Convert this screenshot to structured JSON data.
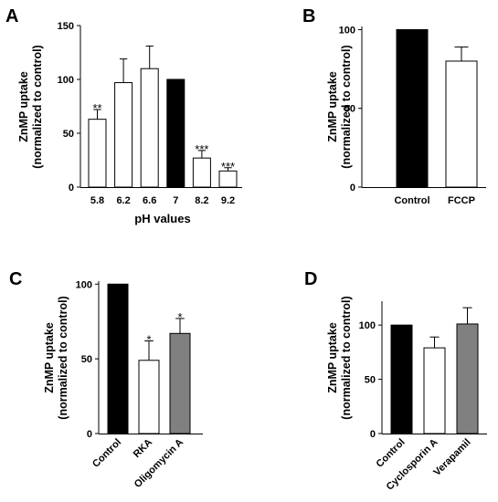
{
  "chart_data": [
    {
      "panel_label": "A",
      "type": "bar",
      "ylabel": [
        "ZnMP uptake",
        "(normalized to control)"
      ],
      "xlabel": "pH values",
      "categories": [
        "5.8",
        "6.2",
        "6.6",
        "7",
        "8.2",
        "9.2"
      ],
      "values": [
        63,
        97,
        110,
        100,
        27,
        15
      ],
      "errors": [
        9,
        22,
        21,
        0,
        7,
        3
      ],
      "fills": [
        "#ffffff",
        "#ffffff",
        "#ffffff",
        "#000000",
        "#ffffff",
        "#ffffff"
      ],
      "annotations": [
        "**",
        "",
        "",
        "",
        "***",
        "***"
      ],
      "ylim": [
        0,
        150
      ],
      "yticks": [
        "0",
        "50",
        "100",
        "150"
      ],
      "grid": false,
      "rotate_xticks": false
    },
    {
      "panel_label": "B",
      "type": "bar",
      "ylabel": [
        "ZnMP uptake",
        "(normalized to control)"
      ],
      "xlabel": "",
      "categories": [
        "Control",
        "FCCP"
      ],
      "values": [
        100,
        80
      ],
      "errors": [
        0,
        9
      ],
      "fills": [
        "#000000",
        "#ffffff"
      ],
      "annotations": [
        "",
        ""
      ],
      "ylim": [
        0,
        102
      ],
      "yticks": [
        "0",
        "50",
        "100"
      ],
      "grid": false,
      "rotate_xticks": false
    },
    {
      "panel_label": "C",
      "type": "bar",
      "ylabel": [
        "ZnMP uptake",
        "(normalized to control)"
      ],
      "xlabel": "",
      "categories": [
        "Control",
        "RKA",
        "Oligomycin A"
      ],
      "values": [
        100,
        49,
        67
      ],
      "errors": [
        0,
        13,
        10
      ],
      "fills": [
        "#000000",
        "#ffffff",
        "#808080"
      ],
      "annotations": [
        "",
        "*",
        "*"
      ],
      "ylim": [
        0,
        102
      ],
      "yticks": [
        "0",
        "50",
        "100"
      ],
      "grid": false,
      "rotate_xticks": true
    },
    {
      "panel_label": "D",
      "type": "bar",
      "ylabel": [
        "ZnMP uptake",
        "(normalized to control)"
      ],
      "xlabel": "",
      "categories": [
        "Control",
        "Cyclosporin A",
        "Verapamil"
      ],
      "values": [
        100,
        79,
        101
      ],
      "errors": [
        0,
        10,
        15
      ],
      "fills": [
        "#000000",
        "#ffffff",
        "#808080"
      ],
      "annotations": [
        "",
        "",
        ""
      ],
      "ylim": [
        0,
        122
      ],
      "yticks": [
        "0",
        "50",
        "100"
      ],
      "grid": false,
      "rotate_xticks": true
    }
  ]
}
